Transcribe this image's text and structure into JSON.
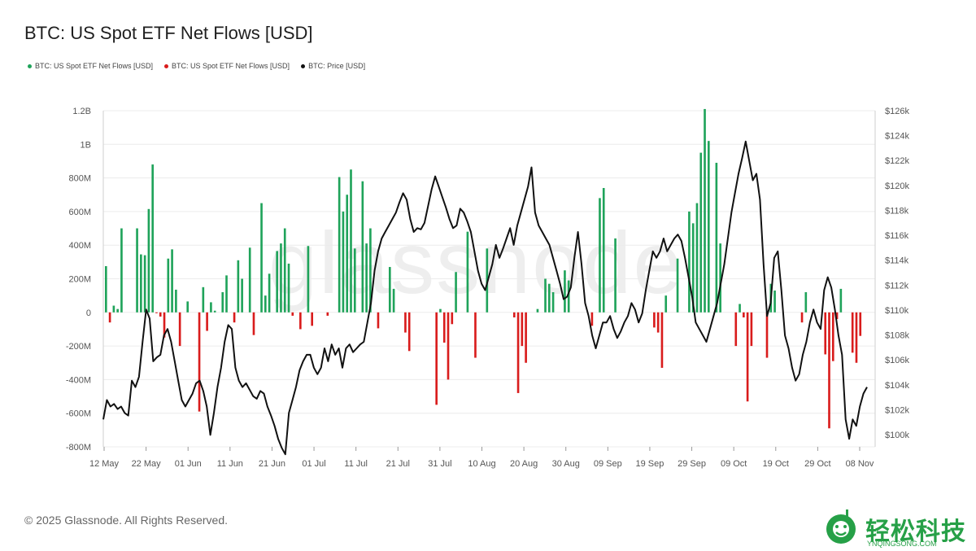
{
  "title": "BTC: US Spot ETF Net Flows [USD]",
  "legend": [
    {
      "label": "BTC: US Spot ETF Net Flows [USD]",
      "color": "#1fa35a"
    },
    {
      "label": "BTC: US Spot ETF Net Flows [USD]",
      "color": "#d91c1c"
    },
    {
      "label": "BTC: Price [USD]",
      "color": "#111111"
    }
  ],
  "watermark": "glassnode",
  "copyright": "© 2025 Glassnode. All Rights Reserved.",
  "logo": {
    "text": "轻松科技",
    "sub": "YNQINGSONG.COM"
  },
  "chart_data": {
    "type": "bar",
    "x_ticks": [
      "12 May",
      "22 May",
      "01 Jun",
      "11 Jun",
      "21 Jun",
      "01 Jul",
      "11 Jul",
      "21 Jul",
      "31 Jul",
      "10 Aug",
      "20 Aug",
      "30 Aug",
      "09 Sep",
      "19 Sep",
      "29 Sep",
      "09 Oct",
      "19 Oct",
      "29 Oct",
      "08 Nov"
    ],
    "y_left_ticks": [
      "1.2B",
      "1B",
      "800M",
      "600M",
      "400M",
      "200M",
      "0",
      "-200M",
      "-400M",
      "-600M",
      "-800M"
    ],
    "y_right_ticks": [
      "$126k",
      "$124k",
      "$122k",
      "$120k",
      "$118k",
      "$116k",
      "$114k",
      "$112k",
      "$110k",
      "$108k",
      "$106k",
      "$104k",
      "$102k",
      "$100k"
    ],
    "ylim_left": [
      -800,
      1200
    ],
    "ylim_right": [
      100,
      126
    ],
    "units_left": "M USD",
    "units_right": "k USD",
    "colors": {
      "positive": "#1fa35a",
      "negative": "#d91c1c",
      "price": "#111111"
    },
    "start_date": "12 May",
    "flows_musd": [
      275,
      -60,
      0,
      40,
      20,
      500,
      0,
      0,
      0,
      500,
      0,
      345,
      340,
      615,
      880,
      0,
      -5,
      -25,
      -150,
      320,
      375,
      135,
      0,
      -200,
      0,
      65,
      0,
      0,
      0,
      -590,
      150,
      -110,
      60,
      0,
      0,
      0,
      15,
      0,
      0,
      120,
      220,
      0,
      -60,
      310,
      200,
      0,
      0,
      0,
      385,
      -135,
      0,
      650,
      100,
      230,
      0,
      0,
      0,
      0,
      0,
      0,
      0,
      140,
      0,
      365,
      650,
      410,
      500,
      0,
      0,
      0,
      -95,
      0,
      0,
      0,
      255,
      0,
      0,
      0,
      80,
      0,
      0,
      0,
      0,
      0,
      0,
      0,
      -100,
      0,
      0,
      0,
      0,
      0,
      0,
      0,
      0,
      0,
      0,
      0,
      0,
      0,
      0,
      0,
      0,
      0,
      0,
      0,
      0,
      0,
      0,
      0,
      0,
      0,
      0,
      0,
      0,
      0,
      0,
      0,
      0,
      0,
      0,
      0,
      0,
      0,
      0,
      0,
      0,
      0,
      0,
      0,
      0,
      0,
      0,
      0,
      0,
      0,
      0,
      0,
      0,
      0,
      0,
      0,
      0,
      0,
      0,
      0,
      0,
      0,
      0,
      0,
      0,
      0,
      0,
      0,
      0,
      0,
      0,
      0,
      0,
      0,
      0,
      0,
      0,
      0,
      0,
      0,
      0,
      0,
      0,
      0,
      0,
      0,
      0,
      0,
      0,
      0,
      0,
      0,
      0,
      0,
      0,
      0,
      0,
      0,
      0,
      0,
      0,
      0,
      0,
      0,
      0,
      0,
      0,
      0,
      0
    ],
    "price_k": []
  }
}
